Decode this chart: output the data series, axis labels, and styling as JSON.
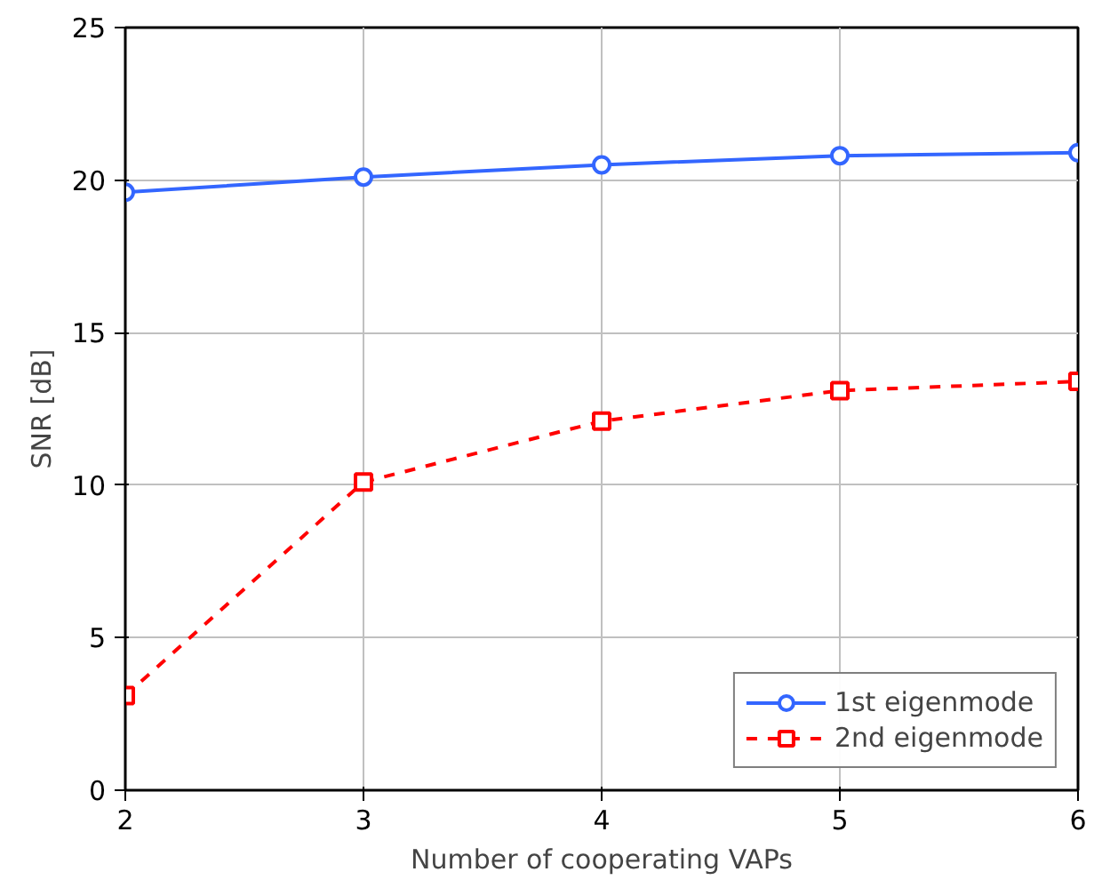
{
  "chart_data": {
    "type": "line",
    "xlabel": "Number of cooperating VAPs",
    "ylabel": "SNR [dB]",
    "x": [
      2,
      3,
      4,
      5,
      6
    ],
    "series": [
      {
        "name": "1st eigenmode",
        "color": "#3366ff",
        "values": [
          19.6,
          20.1,
          20.5,
          20.8,
          20.9
        ],
        "marker": "circle",
        "line_style": "solid"
      },
      {
        "name": "2nd eigenmode",
        "color": "#ff0000",
        "values": [
          3.1,
          10.1,
          12.1,
          13.1,
          13.4
        ],
        "marker": "square",
        "line_style": "dashed"
      }
    ],
    "xlim": [
      2,
      6
    ],
    "xticks": [
      2,
      3,
      4,
      5,
      6
    ],
    "ylim": [
      0,
      25
    ],
    "yticks": [
      0,
      5,
      10,
      15,
      20,
      25
    ],
    "grid": true,
    "legend": "bottom right"
  }
}
